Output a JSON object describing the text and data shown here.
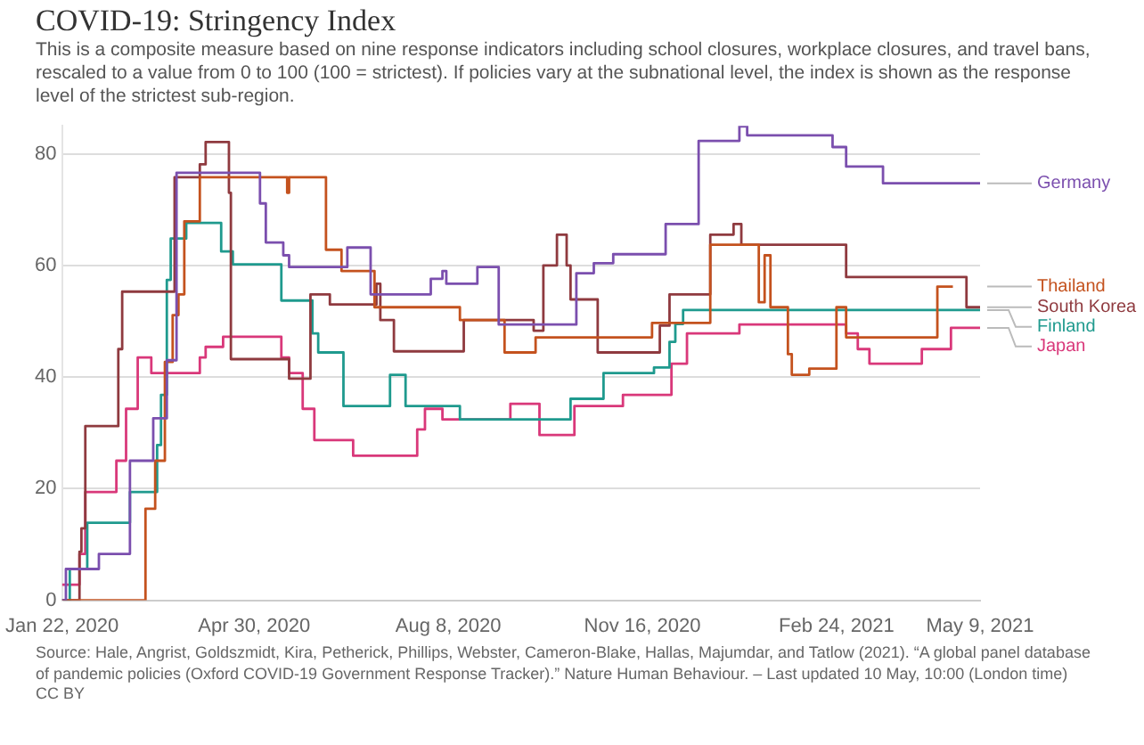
{
  "chart_data": {
    "type": "step",
    "title": "COVID-19: Stringency Index",
    "subtitle": "This is a composite measure based on nine response indicators including school closures, workplace closures, and travel bans, rescaled to a value from 0 to 100 (100 = strictest). If policies vary at the subnational level, the index is shown as the response level of the strictest sub-region.",
    "annotations": [
      "Source: Hale, Angrist, Goldszmidt, Kira, Petherick, Phillips, Webster, Cameron-Blake, Hallas, Majumdar, and Tatlow (2021). “A global panel database of pandemic policies (Oxford COVID-19 Government Response Tracker).” Nature Human Behaviour. – Last updated 10 May, 10:00 (London time)",
      "CC BY"
    ],
    "xlim": [
      "2020-01-22",
      "2021-05-09"
    ],
    "xticks": [
      {
        "value": "2020-01-22",
        "label": "Jan 22, 2020"
      },
      {
        "value": "2020-04-30",
        "label": "Apr 30, 2020"
      },
      {
        "value": "2020-08-08",
        "label": "Aug 8, 2020"
      },
      {
        "value": "2020-11-16",
        "label": "Nov 16, 2020"
      },
      {
        "value": "2021-02-24",
        "label": "Feb 24, 2021"
      },
      {
        "value": "2021-05-09",
        "label": "May 9, 2021"
      }
    ],
    "ylim": [
      0,
      85
    ],
    "yticks": [
      0,
      20,
      40,
      60,
      80
    ],
    "grid": "y",
    "legend": "right",
    "series": [
      {
        "name": "Germany",
        "color": "#7b4fae",
        "x": [
          "2020-01-22",
          "2020-01-24",
          "2020-02-10",
          "2020-02-26",
          "2020-03-09",
          "2020-03-16",
          "2020-03-21",
          "2020-05-03",
          "2020-05-06",
          "2020-05-15",
          "2020-05-18",
          "2020-06-17",
          "2020-06-29",
          "2020-07-30",
          "2020-08-05",
          "2020-08-07",
          "2020-08-23",
          "2020-09-03",
          "2020-10-13",
          "2020-10-22",
          "2020-11-01",
          "2020-11-28",
          "2020-12-15",
          "2021-01-05",
          "2021-01-09",
          "2021-02-22",
          "2021-03-01",
          "2021-03-20",
          "2021-05-09"
        ],
        "values": [
          0,
          5.6,
          8.3,
          25,
          32.6,
          43,
          76.6,
          71.1,
          64.1,
          61.8,
          59.7,
          63.2,
          54.8,
          57.6,
          59,
          56.7,
          59.7,
          49.4,
          58.6,
          60.4,
          62,
          67.4,
          82.3,
          84.9,
          83.3,
          81.2,
          77.7,
          74.7,
          74.7
        ]
      },
      {
        "name": "Thailand",
        "color": "#c4521e",
        "x": [
          "2020-01-22",
          "2020-03-05",
          "2020-03-10",
          "2020-03-15",
          "2020-03-19",
          "2020-03-22",
          "2020-03-25",
          "2020-04-02",
          "2020-05-17",
          "2020-05-18",
          "2020-06-06",
          "2020-06-14",
          "2020-07-01",
          "2020-08-14",
          "2020-09-06",
          "2020-09-22",
          "2020-11-21",
          "2020-12-21",
          "2021-01-15",
          "2021-01-18",
          "2021-01-21",
          "2021-01-30",
          "2021-02-01",
          "2021-02-10",
          "2021-02-24",
          "2021-03-01",
          "2021-04-17",
          "2021-04-25"
        ],
        "values": [
          0,
          16.4,
          25,
          42.7,
          51.1,
          54.8,
          67.9,
          75.8,
          73,
          75.8,
          62.8,
          59,
          52.5,
          50.2,
          44.4,
          47.1,
          49.7,
          63.7,
          53.4,
          61.8,
          52.5,
          44.1,
          40.4,
          41.5,
          52.5,
          47.1,
          56.2,
          56.2
        ]
      },
      {
        "name": "South Korea",
        "color": "#8f3a3f",
        "x": [
          "2020-01-22",
          "2020-01-31",
          "2020-02-01",
          "2020-02-03",
          "2020-02-20",
          "2020-02-22",
          "2020-03-20",
          "2020-04-02",
          "2020-04-05",
          "2020-04-17",
          "2020-04-18",
          "2020-05-18",
          "2020-05-29",
          "2020-06-08",
          "2020-07-02",
          "2020-07-04",
          "2020-07-11",
          "2020-08-16",
          "2020-09-21",
          "2020-09-26",
          "2020-10-03",
          "2020-10-08",
          "2020-10-10",
          "2020-10-24",
          "2020-11-25",
          "2020-11-30",
          "2020-12-21",
          "2021-01-02",
          "2021-01-06",
          "2021-03-01",
          "2021-05-02",
          "2021-05-09"
        ],
        "values": [
          0,
          8.7,
          12.9,
          31.2,
          45,
          55.3,
          75.8,
          78.1,
          82.1,
          73,
          43.2,
          39.7,
          54.8,
          53,
          56.7,
          50.2,
          44.6,
          50.2,
          48.3,
          60,
          65.5,
          60,
          53.9,
          44.4,
          49.2,
          54.8,
          65.5,
          67.4,
          63.7,
          57.9,
          52.5,
          52.5
        ]
      },
      {
        "name": "Finland",
        "color": "#1f9a8e",
        "x": [
          "2020-01-22",
          "2020-01-26",
          "2020-02-04",
          "2020-02-26",
          "2020-03-11",
          "2020-03-13",
          "2020-03-16",
          "2020-03-18",
          "2020-03-26",
          "2020-04-13",
          "2020-04-19",
          "2020-05-14",
          "2020-05-30",
          "2020-06-02",
          "2020-06-15",
          "2020-07-09",
          "2020-07-17",
          "2020-08-14",
          "2020-10-10",
          "2020-10-27",
          "2020-11-22",
          "2020-11-30",
          "2020-12-03",
          "2020-12-07",
          "2021-05-09"
        ],
        "values": [
          0,
          5.6,
          13.9,
          19.4,
          27.8,
          36.8,
          57.4,
          64.8,
          67.6,
          62.5,
          60.2,
          53.7,
          47.8,
          44.4,
          34.8,
          40.4,
          34.8,
          32.4,
          36.1,
          40.7,
          41.7,
          46.3,
          49.5,
          52,
          52
        ]
      },
      {
        "name": "Japan",
        "color": "#d9387a",
        "x": [
          "2020-01-22",
          "2020-01-31",
          "2020-02-03",
          "2020-02-19",
          "2020-02-24",
          "2020-03-01",
          "2020-03-08",
          "2020-04-02",
          "2020-04-05",
          "2020-04-14",
          "2020-05-14",
          "2020-05-18",
          "2020-05-25",
          "2020-05-31",
          "2020-06-20",
          "2020-07-23",
          "2020-07-27",
          "2020-08-05",
          "2020-09-09",
          "2020-09-24",
          "2020-10-12",
          "2020-11-06",
          "2020-12-01",
          "2020-12-09",
          "2021-01-05",
          "2021-03-01",
          "2021-03-07",
          "2021-03-13",
          "2021-04-09",
          "2021-04-24",
          "2021-05-09"
        ],
        "values": [
          2.8,
          8.3,
          19.4,
          25,
          34.3,
          43.5,
          40.7,
          43.5,
          45.4,
          47.2,
          43.5,
          40.7,
          34.3,
          28.7,
          25.9,
          30.6,
          34.3,
          32.4,
          35.2,
          29.6,
          34.8,
          36.8,
          42.4,
          47.8,
          49.4,
          47.8,
          45,
          42.4,
          45,
          48.8,
          48.8
        ]
      }
    ]
  }
}
